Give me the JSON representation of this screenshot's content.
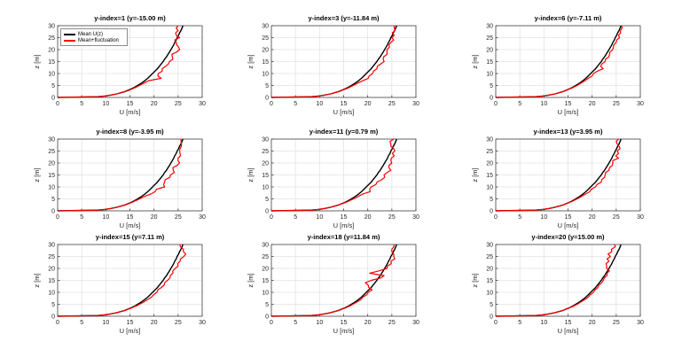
{
  "chart_data": {
    "type": "line",
    "layout": {
      "rows": 3,
      "cols": 3
    },
    "xlabel": "U [m/s]",
    "ylabel": "z [m]",
    "xlim": [
      0,
      30
    ],
    "ylim": [
      0,
      30
    ],
    "xticks": [
      0,
      5,
      10,
      15,
      20,
      25,
      30
    ],
    "yticks": [
      0,
      5,
      10,
      15,
      20,
      25,
      30
    ],
    "grid": true,
    "colors": {
      "mean": "#000000",
      "fluctuation": "#ff0000",
      "axis": "#404040",
      "grid": "#e2e2e2"
    },
    "legend": {
      "position": "northwest",
      "on_subplot": 1,
      "entries": [
        {
          "label": "Mean U(z)",
          "color": "#000000"
        },
        {
          "label": "Mean+fluctuation",
          "color": "#ff0000"
        }
      ]
    },
    "z": [
      0,
      0.3,
      0.6,
      1,
      1.5,
      2,
      2.5,
      3,
      3.5,
      4,
      4.5,
      5,
      6,
      7,
      8,
      9,
      10,
      11,
      12,
      13,
      14,
      15,
      16,
      17,
      18,
      19,
      20,
      21,
      22,
      23,
      24,
      25,
      26,
      27,
      28,
      29,
      30
    ],
    "mean_u": [
      0,
      8.2,
      9.8,
      11.1,
      12.3,
      13.2,
      14.0,
      14.6,
      15.2,
      15.7,
      16.2,
      16.6,
      17.4,
      18.1,
      18.7,
      19.2,
      19.7,
      20.2,
      20.7,
      21.1,
      21.5,
      21.9,
      22.2,
      22.6,
      22.9,
      23.2,
      23.5,
      23.8,
      24.1,
      24.3,
      24.6,
      24.8,
      25.1,
      25.3,
      25.6,
      25.8,
      26.0
    ],
    "plots": [
      {
        "title": "y-index=1 (y=-15.00 m)",
        "fluct_u": [
          0,
          8.2,
          9.8,
          11.1,
          12.3,
          13.3,
          14.1,
          14.8,
          15.4,
          16.0,
          16.5,
          17.0,
          17.9,
          18.9,
          21.5,
          20.8,
          20.9,
          21.7,
          21.7,
          22.4,
          23.0,
          23.2,
          23.9,
          23.8,
          23.7,
          24.7,
          25.3,
          25.1,
          24.7,
          24.6,
          24.3,
          25.3,
          24.6,
          24.5,
          25.0,
          24.6,
          25.0
        ]
      },
      {
        "title": "y-index=3 (y=-11.84 m)",
        "fluct_u": [
          0,
          8.2,
          9.8,
          11.1,
          12.3,
          13.2,
          14.1,
          14.7,
          15.4,
          16.0,
          16.5,
          17.0,
          17.9,
          19.0,
          20.1,
          20.3,
          21.0,
          21.2,
          21.9,
          22.0,
          22.7,
          23.4,
          23.2,
          23.3,
          24.0,
          24.0,
          24.0,
          24.5,
          24.4,
          24.8,
          25.4,
          25.0,
          25.5,
          25.1,
          25.7,
          25.5,
          25.5
        ]
      },
      {
        "title": "y-index=6 (y=-7.11 m)",
        "fluct_u": [
          0,
          8.2,
          9.8,
          11.1,
          12.3,
          13.2,
          14.0,
          14.7,
          15.3,
          15.9,
          16.4,
          16.9,
          17.7,
          18.5,
          19.2,
          20.0,
          20.3,
          21.1,
          22.3,
          21.8,
          22.0,
          22.7,
          22.8,
          23.5,
          23.6,
          23.7,
          24.3,
          24.4,
          24.5,
          25.0,
          25.1,
          25.7,
          25.5,
          25.9,
          25.9,
          26.2,
          26.2
        ]
      },
      {
        "title": "y-index=8 (y=-3.95 m)",
        "fluct_u": [
          0,
          8.2,
          9.8,
          11.1,
          12.3,
          13.2,
          14.1,
          14.7,
          15.4,
          15.9,
          16.5,
          17.0,
          18.0,
          19.3,
          20.2,
          20.5,
          22.2,
          22.0,
          22.2,
          22.3,
          23.3,
          23.4,
          24.2,
          24.0,
          23.9,
          24.8,
          25.3,
          25.0,
          25.0,
          25.5,
          25.4,
          25.3,
          25.4,
          25.7,
          25.7,
          25.6,
          25.6
        ]
      },
      {
        "title": "y-index=11 (y=0.79 m)",
        "fluct_u": [
          0,
          8.2,
          9.8,
          11.1,
          12.3,
          13.2,
          14.0,
          14.7,
          15.4,
          16.0,
          16.5,
          17.1,
          18.0,
          18.9,
          20.5,
          20.4,
          20.7,
          21.7,
          21.9,
          22.9,
          23.5,
          23.4,
          24.0,
          24.8,
          24.4,
          24.4,
          25.0,
          24.8,
          24.9,
          25.5,
          25.1,
          25.6,
          25.4,
          24.8,
          24.8,
          24.6,
          25.4
        ]
      },
      {
        "title": "y-index=13 (y=3.95 m)",
        "fluct_u": [
          0,
          8.2,
          9.8,
          11.1,
          12.3,
          13.2,
          14.0,
          14.7,
          15.3,
          15.9,
          16.4,
          16.9,
          17.8,
          18.6,
          19.5,
          19.8,
          20.7,
          21.0,
          21.9,
          22.0,
          22.6,
          22.7,
          22.8,
          23.5,
          23.6,
          24.2,
          24.3,
          24.3,
          25.5,
          24.9,
          25.5,
          25.2,
          25.8,
          25.6,
          25.2,
          25.0,
          25.5
        ]
      },
      {
        "title": "y-index=15 (y=7.11 m)",
        "fluct_u": [
          0,
          8.2,
          9.8,
          11.1,
          12.3,
          13.2,
          14.1,
          14.7,
          15.4,
          15.9,
          16.5,
          17.0,
          17.9,
          18.7,
          19.5,
          19.9,
          20.6,
          20.8,
          21.5,
          22.1,
          22.2,
          22.8,
          23.3,
          23.4,
          23.9,
          23.9,
          24.4,
          25.0,
          24.9,
          25.4,
          25.5,
          26.2,
          26.6,
          26.1,
          26.1,
          25.5,
          25.4
        ]
      },
      {
        "title": "y-index=18 (y=11.84 m)",
        "fluct_u": [
          0,
          8.2,
          9.8,
          11.1,
          12.3,
          13.2,
          14.1,
          14.7,
          15.4,
          15.9,
          16.5,
          16.9,
          17.8,
          18.6,
          19.0,
          19.8,
          20.1,
          20.9,
          20.2,
          20.1,
          19.5,
          20.7,
          22.7,
          23.4,
          20.4,
          22.4,
          24.0,
          24.1,
          24.9,
          24.8,
          25.6,
          25.4,
          25.4,
          25.0,
          25.0,
          25.4,
          25.5
        ]
      },
      {
        "title": "y-index=20 (y=15.00 m)",
        "fluct_u": [
          0,
          8.2,
          9.8,
          11.1,
          12.3,
          13.2,
          14.0,
          14.7,
          15.3,
          15.9,
          16.4,
          16.9,
          17.7,
          18.5,
          19.2,
          19.6,
          20.3,
          20.6,
          21.2,
          21.4,
          22.0,
          22.3,
          22.5,
          23.1,
          23.1,
          23.6,
          23.0,
          23.0,
          22.9,
          23.5,
          23.1,
          23.8,
          23.3,
          24.1,
          24.0,
          24.8,
          24.7
        ]
      }
    ]
  }
}
